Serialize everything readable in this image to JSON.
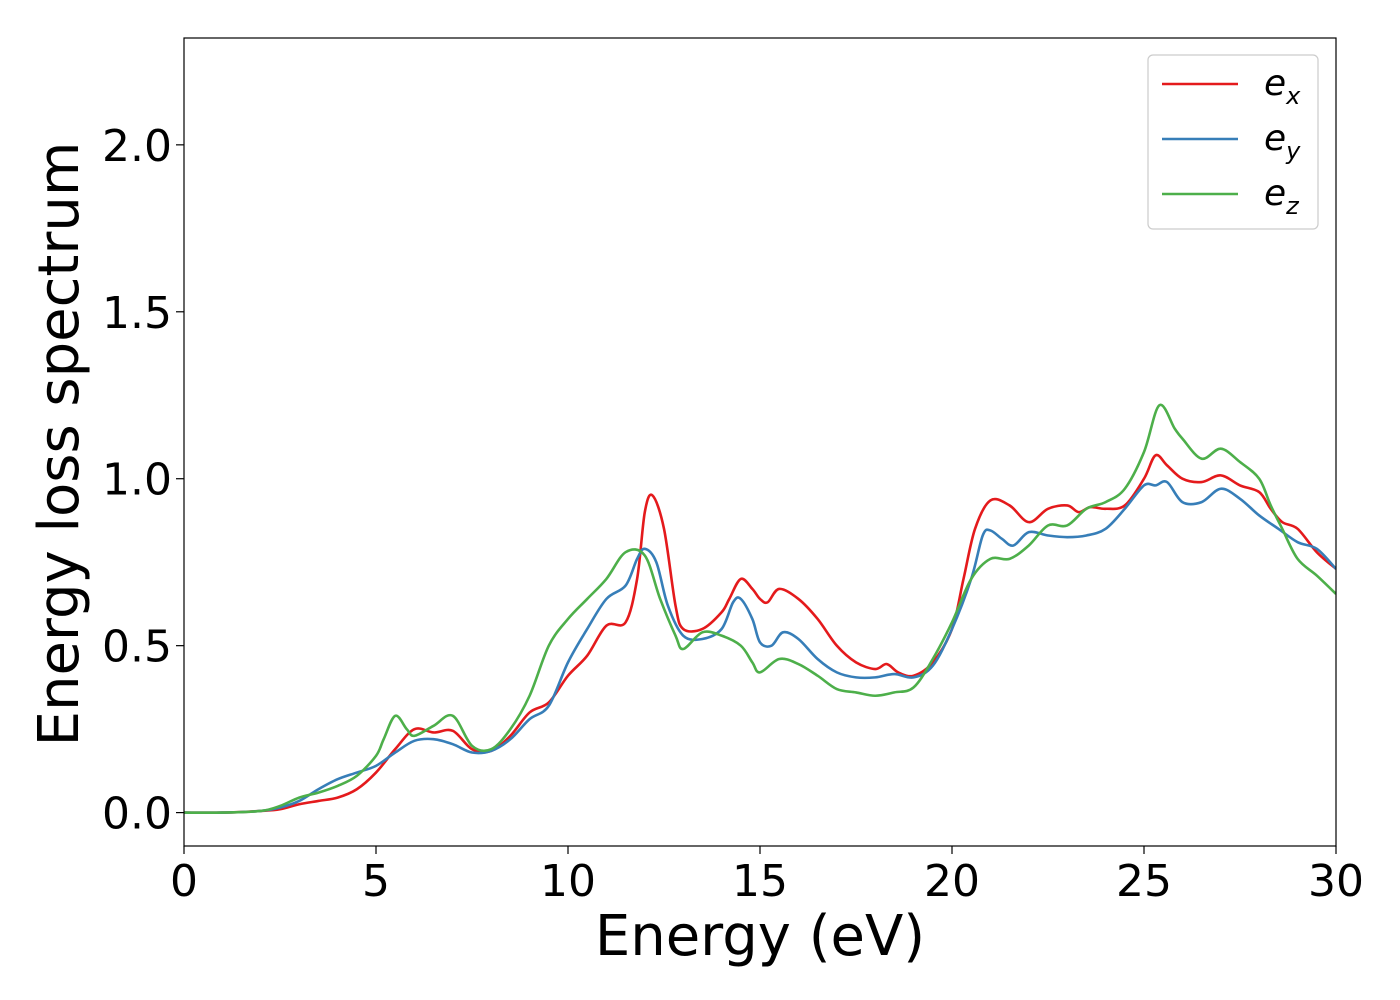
{
  "chart_data": {
    "type": "line",
    "title": "",
    "xlabel": "Energy (eV)",
    "ylabel": "Energy loss spectrum",
    "xlim": [
      0,
      30
    ],
    "ylim": [
      -0.1,
      2.32
    ],
    "xticks": [
      0,
      5,
      10,
      15,
      20,
      25,
      30
    ],
    "xtick_labels": [
      "0",
      "5",
      "10",
      "15",
      "20",
      "25",
      "30"
    ],
    "yticks": [
      0.0,
      0.5,
      1.0,
      1.5,
      2.0
    ],
    "ytick_labels": [
      "0.0",
      "0.5",
      "1.0",
      "1.5",
      "2.0"
    ],
    "grid": false,
    "legend_position": "top-right",
    "series": [
      {
        "name": "ex",
        "label_base": "e",
        "label_sub": "x",
        "color": "#e41a1c",
        "points": [
          [
            0,
            0
          ],
          [
            1,
            0
          ],
          [
            2,
            0.005
          ],
          [
            2.5,
            0.01
          ],
          [
            3,
            0.025
          ],
          [
            3.5,
            0.035
          ],
          [
            4,
            0.045
          ],
          [
            4.5,
            0.07
          ],
          [
            5,
            0.12
          ],
          [
            5.5,
            0.19
          ],
          [
            6,
            0.25
          ],
          [
            6.5,
            0.24
          ],
          [
            7,
            0.245
          ],
          [
            7.5,
            0.19
          ],
          [
            8,
            0.185
          ],
          [
            8.5,
            0.23
          ],
          [
            9,
            0.3
          ],
          [
            9.5,
            0.33
          ],
          [
            10,
            0.41
          ],
          [
            10.5,
            0.47
          ],
          [
            11,
            0.56
          ],
          [
            11.5,
            0.57
          ],
          [
            11.8,
            0.7
          ],
          [
            12,
            0.9
          ],
          [
            12.2,
            0.95
          ],
          [
            12.5,
            0.85
          ],
          [
            12.8,
            0.62
          ],
          [
            13,
            0.55
          ],
          [
            13.5,
            0.55
          ],
          [
            14,
            0.6
          ],
          [
            14.2,
            0.64
          ],
          [
            14.5,
            0.7
          ],
          [
            14.8,
            0.67
          ],
          [
            15,
            0.64
          ],
          [
            15.2,
            0.63
          ],
          [
            15.5,
            0.67
          ],
          [
            16,
            0.64
          ],
          [
            16.5,
            0.58
          ],
          [
            17,
            0.5
          ],
          [
            17.5,
            0.45
          ],
          [
            18,
            0.43
          ],
          [
            18.3,
            0.445
          ],
          [
            18.6,
            0.42
          ],
          [
            19,
            0.41
          ],
          [
            19.5,
            0.45
          ],
          [
            20,
            0.55
          ],
          [
            20.3,
            0.7
          ],
          [
            20.6,
            0.85
          ],
          [
            21,
            0.935
          ],
          [
            21.5,
            0.92
          ],
          [
            22,
            0.87
          ],
          [
            22.5,
            0.91
          ],
          [
            23,
            0.92
          ],
          [
            23.3,
            0.9
          ],
          [
            23.6,
            0.915
          ],
          [
            24,
            0.91
          ],
          [
            24.5,
            0.92
          ],
          [
            25,
            1.0
          ],
          [
            25.3,
            1.07
          ],
          [
            25.6,
            1.04
          ],
          [
            26,
            1.0
          ],
          [
            26.5,
            0.99
          ],
          [
            27,
            1.01
          ],
          [
            27.5,
            0.98
          ],
          [
            28,
            0.96
          ],
          [
            28.3,
            0.91
          ],
          [
            28.6,
            0.87
          ],
          [
            29,
            0.85
          ],
          [
            29.5,
            0.78
          ],
          [
            30,
            0.73
          ]
        ]
      },
      {
        "name": "ey",
        "label_base": "e",
        "label_sub": "y",
        "color": "#377eb8",
        "points": [
          [
            0,
            0
          ],
          [
            1,
            0
          ],
          [
            2,
            0.005
          ],
          [
            2.5,
            0.015
          ],
          [
            3,
            0.035
          ],
          [
            3.5,
            0.07
          ],
          [
            4,
            0.1
          ],
          [
            4.5,
            0.12
          ],
          [
            5,
            0.14
          ],
          [
            5.5,
            0.18
          ],
          [
            6,
            0.215
          ],
          [
            6.5,
            0.22
          ],
          [
            7,
            0.205
          ],
          [
            7.5,
            0.18
          ],
          [
            8,
            0.185
          ],
          [
            8.5,
            0.22
          ],
          [
            9,
            0.28
          ],
          [
            9.5,
            0.32
          ],
          [
            10,
            0.45
          ],
          [
            10.5,
            0.55
          ],
          [
            11,
            0.64
          ],
          [
            11.5,
            0.68
          ],
          [
            11.8,
            0.76
          ],
          [
            12,
            0.79
          ],
          [
            12.3,
            0.75
          ],
          [
            12.6,
            0.62
          ],
          [
            13,
            0.53
          ],
          [
            13.5,
            0.52
          ],
          [
            14,
            0.55
          ],
          [
            14.3,
            0.63
          ],
          [
            14.5,
            0.64
          ],
          [
            14.8,
            0.58
          ],
          [
            15,
            0.51
          ],
          [
            15.3,
            0.5
          ],
          [
            15.6,
            0.54
          ],
          [
            16,
            0.52
          ],
          [
            16.5,
            0.46
          ],
          [
            17,
            0.42
          ],
          [
            17.5,
            0.405
          ],
          [
            18,
            0.405
          ],
          [
            18.5,
            0.415
          ],
          [
            19,
            0.405
          ],
          [
            19.5,
            0.44
          ],
          [
            20,
            0.55
          ],
          [
            20.5,
            0.7
          ],
          [
            20.8,
            0.83
          ],
          [
            21,
            0.845
          ],
          [
            21.3,
            0.82
          ],
          [
            21.6,
            0.8
          ],
          [
            22,
            0.84
          ],
          [
            22.5,
            0.83
          ],
          [
            23,
            0.825
          ],
          [
            23.5,
            0.83
          ],
          [
            24,
            0.85
          ],
          [
            24.5,
            0.91
          ],
          [
            25,
            0.98
          ],
          [
            25.3,
            0.98
          ],
          [
            25.6,
            0.99
          ],
          [
            26,
            0.93
          ],
          [
            26.5,
            0.93
          ],
          [
            27,
            0.97
          ],
          [
            27.5,
            0.94
          ],
          [
            28,
            0.89
          ],
          [
            28.5,
            0.85
          ],
          [
            29,
            0.81
          ],
          [
            29.5,
            0.79
          ],
          [
            30,
            0.73
          ]
        ]
      },
      {
        "name": "ez",
        "label_base": "e",
        "label_sub": "z",
        "color": "#4daf4a",
        "points": [
          [
            0,
            0
          ],
          [
            1,
            0
          ],
          [
            2,
            0.005
          ],
          [
            2.5,
            0.02
          ],
          [
            3,
            0.045
          ],
          [
            3.5,
            0.06
          ],
          [
            4,
            0.08
          ],
          [
            4.5,
            0.11
          ],
          [
            5,
            0.17
          ],
          [
            5.2,
            0.22
          ],
          [
            5.5,
            0.29
          ],
          [
            5.8,
            0.25
          ],
          [
            6,
            0.23
          ],
          [
            6.5,
            0.26
          ],
          [
            7,
            0.29
          ],
          [
            7.5,
            0.2
          ],
          [
            8,
            0.19
          ],
          [
            8.5,
            0.25
          ],
          [
            9,
            0.35
          ],
          [
            9.5,
            0.5
          ],
          [
            10,
            0.58
          ],
          [
            10.5,
            0.64
          ],
          [
            11,
            0.7
          ],
          [
            11.5,
            0.78
          ],
          [
            12,
            0.77
          ],
          [
            12.4,
            0.64
          ],
          [
            12.8,
            0.53
          ],
          [
            13,
            0.49
          ],
          [
            13.5,
            0.54
          ],
          [
            14,
            0.53
          ],
          [
            14.5,
            0.5
          ],
          [
            14.8,
            0.45
          ],
          [
            15,
            0.42
          ],
          [
            15.5,
            0.46
          ],
          [
            16,
            0.445
          ],
          [
            16.5,
            0.41
          ],
          [
            17,
            0.37
          ],
          [
            17.5,
            0.36
          ],
          [
            18,
            0.35
          ],
          [
            18.5,
            0.36
          ],
          [
            19,
            0.375
          ],
          [
            19.5,
            0.46
          ],
          [
            20,
            0.57
          ],
          [
            20.5,
            0.7
          ],
          [
            21,
            0.76
          ],
          [
            21.5,
            0.76
          ],
          [
            22,
            0.8
          ],
          [
            22.5,
            0.86
          ],
          [
            23,
            0.86
          ],
          [
            23.5,
            0.91
          ],
          [
            24,
            0.93
          ],
          [
            24.5,
            0.97
          ],
          [
            25,
            1.08
          ],
          [
            25.4,
            1.22
          ],
          [
            25.8,
            1.15
          ],
          [
            26,
            1.12
          ],
          [
            26.5,
            1.06
          ],
          [
            27,
            1.09
          ],
          [
            27.5,
            1.05
          ],
          [
            28,
            1.0
          ],
          [
            28.3,
            0.92
          ],
          [
            28.6,
            0.85
          ],
          [
            29,
            0.76
          ],
          [
            29.5,
            0.71
          ],
          [
            30,
            0.655
          ]
        ]
      }
    ]
  }
}
